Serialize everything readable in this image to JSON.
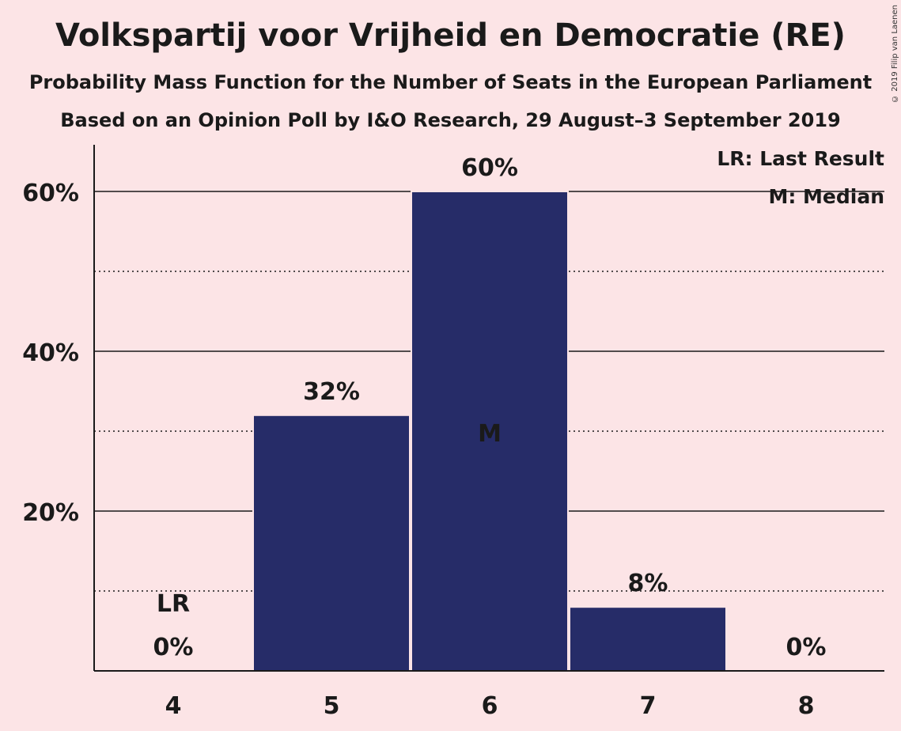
{
  "header": {
    "title": "Volkspartij voor Vrijheid en Democratie (RE)",
    "subtitle": "Probability Mass Function for the Number of Seats in the European Parliament",
    "subtitle2": "Based on an Opinion Poll by I&O Research, 29 August–3 September 2019",
    "copyright": "© 2019 Filip van Laenen"
  },
  "legend": {
    "lr": "LR: Last Result",
    "m": "M: Median"
  },
  "colors": {
    "bar": "#262c68",
    "background": "#fce4e6"
  },
  "chart_data": {
    "type": "bar",
    "categories": [
      "4",
      "5",
      "6",
      "7",
      "8"
    ],
    "values": [
      0,
      32,
      60,
      8,
      0
    ],
    "value_labels": [
      "0%",
      "32%",
      "60%",
      "8%",
      "0%"
    ],
    "yticks": [
      "20%",
      "40%",
      "60%"
    ],
    "ylim": [
      0,
      65
    ],
    "last_result": "4",
    "last_result_label": "LR",
    "median": "6",
    "median_label": "M",
    "grid": true,
    "legend_position": "top-right"
  }
}
